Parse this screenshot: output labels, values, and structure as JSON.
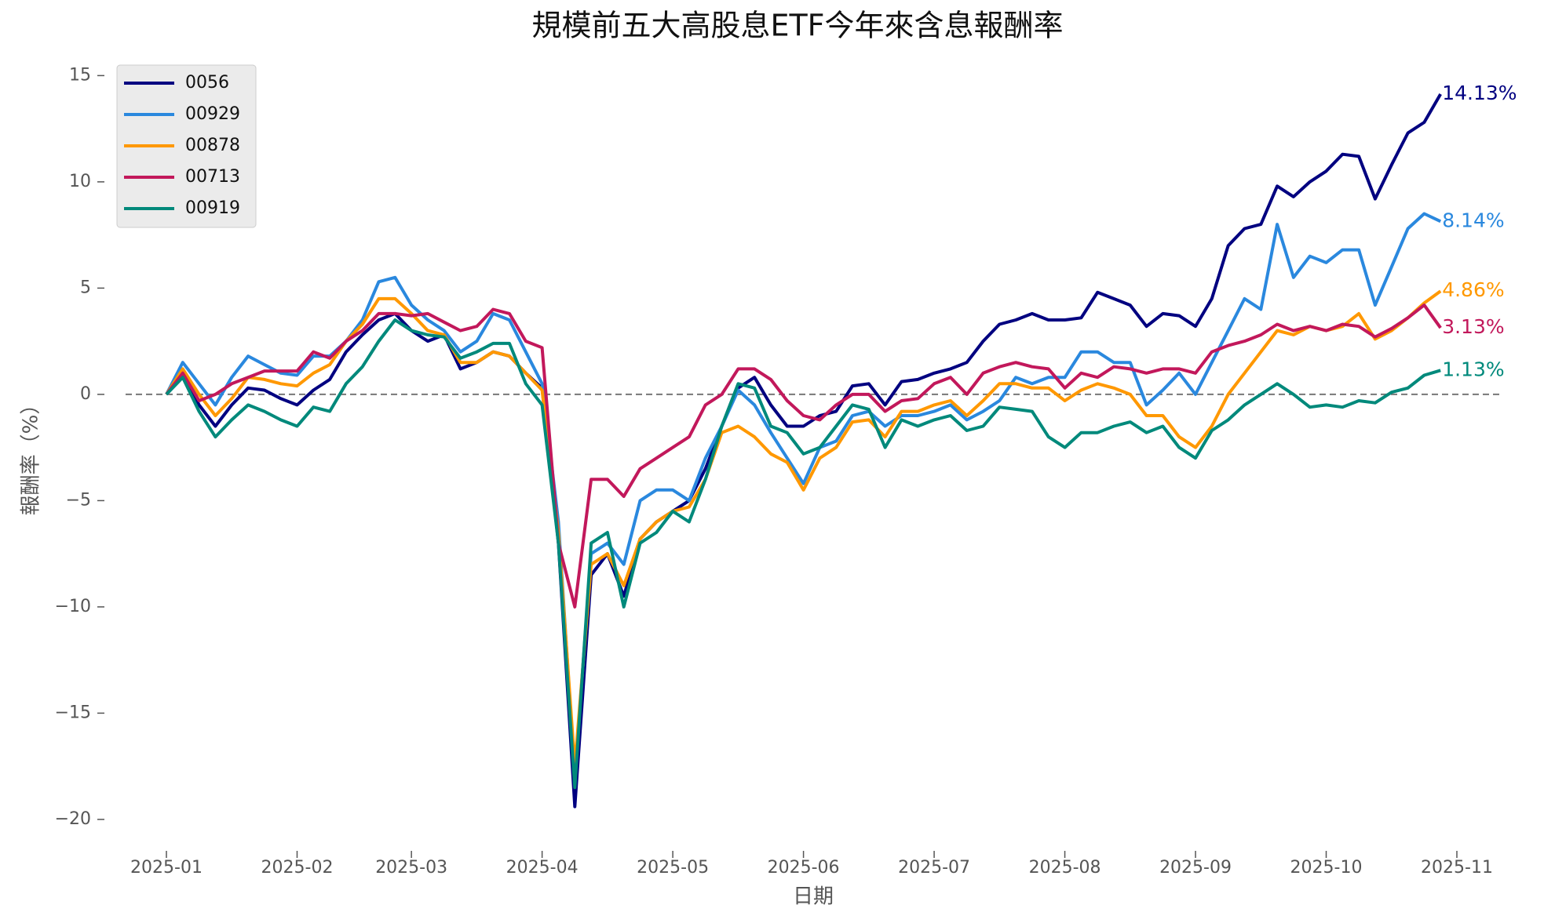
{
  "chart_data": {
    "type": "line",
    "title": "規模前五大高股息ETF今年來含息報酬率",
    "x_label": "日期",
    "y_label": "報酬率（%）",
    "categories": [
      "2025-01",
      null,
      null,
      null,
      null,
      null,
      null,
      null,
      "2025-02",
      null,
      null,
      null,
      null,
      null,
      null,
      "2025-03",
      null,
      null,
      null,
      null,
      null,
      null,
      null,
      "2025-04",
      null,
      null,
      null,
      null,
      null,
      null,
      null,
      "2025-05",
      null,
      null,
      null,
      null,
      null,
      null,
      null,
      "2025-06",
      null,
      null,
      null,
      null,
      null,
      null,
      null,
      "2025-07",
      null,
      null,
      null,
      null,
      null,
      null,
      null,
      "2025-08",
      null,
      null,
      null,
      null,
      null,
      null,
      null,
      "2025-09",
      null,
      null,
      null,
      null,
      null,
      null,
      null,
      "2025-10",
      null,
      null,
      null,
      null,
      null,
      null,
      null,
      "2025-11"
    ],
    "ylim": [
      -21.0,
      15.9
    ],
    "yticks": [
      {
        "value": -20,
        "label": "−20"
      },
      {
        "value": -15,
        "label": "−15"
      },
      {
        "value": -10,
        "label": "−10"
      },
      {
        "value": -5,
        "label": "−5"
      },
      0,
      5,
      10,
      15
    ],
    "hline": 0,
    "legend": "upper-left",
    "series": [
      {
        "name": "0056",
        "color": "#000080",
        "values": [
          0,
          1.0,
          -0.5,
          -1.5,
          -0.5,
          0.3,
          0.2,
          -0.2,
          -0.5,
          0.2,
          0.7,
          2.0,
          2.8,
          3.5,
          3.8,
          3.0,
          2.5,
          2.8,
          1.2,
          1.5,
          2.0,
          1.8,
          1.0,
          0.3,
          -7,
          -19.4,
          -8.5,
          -7.5,
          -9.5,
          -6.8,
          -6,
          -5.5,
          -5,
          -3.5,
          -1.5,
          0.3,
          0.8,
          -0.5,
          -1.5,
          -1.5,
          -1.0,
          -0.8,
          0.4,
          0.5,
          -0.5,
          0.6,
          0.7,
          1.0,
          1.2,
          1.5,
          2.5,
          3.3,
          3.5,
          3.8,
          3.5,
          3.5,
          3.6,
          4.8,
          4.5,
          4.2,
          3.2,
          3.8,
          3.7,
          3.2,
          4.5,
          7.0,
          7.8,
          8.0,
          9.8,
          9.3,
          10.0,
          10.5,
          11.3,
          11.2,
          9.2,
          10.8,
          12.3,
          12.8,
          14.13,
          null
        ],
        "value_labels": [
          null,
          null,
          null,
          null,
          null,
          null,
          null,
          null,
          null,
          null,
          null,
          null,
          null,
          null,
          null,
          null,
          null,
          null,
          null,
          null,
          null,
          null,
          null,
          null,
          null,
          null,
          null,
          null,
          null,
          null,
          null,
          null,
          null,
          null,
          null,
          null,
          null,
          null,
          null,
          null,
          null,
          null,
          null,
          null,
          null,
          null,
          null,
          null,
          null,
          null,
          null,
          null,
          null,
          null,
          null,
          null,
          null,
          null,
          null,
          null,
          null,
          null,
          null,
          null,
          null,
          null,
          null,
          null,
          null,
          null,
          null,
          null,
          null,
          null,
          null,
          null,
          null,
          null,
          "14.13%",
          null
        ]
      },
      {
        "name": "00929",
        "color": "#2a88de",
        "values": [
          0,
          1.5,
          0.5,
          -0.5,
          0.8,
          1.8,
          1.4,
          1.0,
          0.9,
          1.8,
          1.8,
          2.5,
          3.5,
          5.3,
          5.5,
          4.2,
          3.5,
          3.0,
          2.0,
          2.5,
          3.8,
          3.5,
          2.0,
          0.5,
          -6,
          -18,
          -7.5,
          -7,
          -8,
          -5,
          -4.5,
          -4.5,
          -5,
          -3,
          -1.5,
          0.2,
          -0.5,
          -1.8,
          -3,
          -4.2,
          -2.5,
          -2.2,
          -1.0,
          -0.8,
          -1.5,
          -1.0,
          -1.0,
          -0.8,
          -0.5,
          -1.2,
          -0.8,
          -0.3,
          0.8,
          0.5,
          0.8,
          0.8,
          2.0,
          2.0,
          1.5,
          1.5,
          -0.5,
          0.2,
          1.0,
          0.0,
          1.5,
          3.0,
          4.5,
          4.0,
          8.0,
          5.5,
          6.5,
          6.2,
          6.8,
          6.8,
          4.2,
          6.0,
          7.8,
          8.5,
          8.14,
          null
        ],
        "value_labels": [
          null,
          null,
          null,
          null,
          null,
          null,
          null,
          null,
          null,
          null,
          null,
          null,
          null,
          null,
          null,
          null,
          null,
          null,
          null,
          null,
          null,
          null,
          null,
          null,
          null,
          null,
          null,
          null,
          null,
          null,
          null,
          null,
          null,
          null,
          null,
          null,
          null,
          null,
          null,
          null,
          null,
          null,
          null,
          null,
          null,
          null,
          null,
          null,
          null,
          null,
          null,
          null,
          null,
          null,
          null,
          null,
          null,
          null,
          null,
          null,
          null,
          null,
          null,
          null,
          null,
          null,
          null,
          null,
          null,
          null,
          null,
          null,
          null,
          null,
          null,
          null,
          null,
          null,
          "8.14%",
          null
        ]
      },
      {
        "name": "00878",
        "color": "#ff9800",
        "values": [
          0,
          1.2,
          0,
          -1.0,
          -0.2,
          0.8,
          0.7,
          0.5,
          0.4,
          1.0,
          1.4,
          2.5,
          3.3,
          4.5,
          4.5,
          3.8,
          3.0,
          2.8,
          1.5,
          1.5,
          2.0,
          1.8,
          1.0,
          0.2,
          -6.5,
          -17.5,
          -8,
          -7.5,
          -9,
          -6.8,
          -6,
          -5.5,
          -5.3,
          -4,
          -1.8,
          -1.5,
          -2,
          -2.8,
          -3.2,
          -4.5,
          -3,
          -2.5,
          -1.3,
          -1.2,
          -2.0,
          -0.8,
          -0.8,
          -0.5,
          -0.3,
          -1.0,
          -0.3,
          0.5,
          0.5,
          0.3,
          0.3,
          -0.3,
          0.2,
          0.5,
          0.3,
          0.0,
          -1.0,
          -1.0,
          -2.0,
          -2.5,
          -1.5,
          0.0,
          1.0,
          2.0,
          3.0,
          2.8,
          3.2,
          3.0,
          3.2,
          3.8,
          2.6,
          3.0,
          3.6,
          4.3,
          4.86,
          null
        ],
        "value_labels": [
          null,
          null,
          null,
          null,
          null,
          null,
          null,
          null,
          null,
          null,
          null,
          null,
          null,
          null,
          null,
          null,
          null,
          null,
          null,
          null,
          null,
          null,
          null,
          null,
          null,
          null,
          null,
          null,
          null,
          null,
          null,
          null,
          null,
          null,
          null,
          null,
          null,
          null,
          null,
          null,
          null,
          null,
          null,
          null,
          null,
          null,
          null,
          null,
          null,
          null,
          null,
          null,
          null,
          null,
          null,
          null,
          null,
          null,
          null,
          null,
          null,
          null,
          null,
          null,
          null,
          null,
          null,
          null,
          null,
          null,
          null,
          null,
          null,
          null,
          null,
          null,
          null,
          null,
          "4.86%",
          null
        ]
      },
      {
        "name": "00713",
        "color": "#c2185b",
        "values": [
          0,
          1.0,
          -0.3,
          0.0,
          0.5,
          0.8,
          1.1,
          1.1,
          1.1,
          2.0,
          1.7,
          2.5,
          3.0,
          3.8,
          3.8,
          3.7,
          3.8,
          3.4,
          3.0,
          3.2,
          4.0,
          3.8,
          2.5,
          2.2,
          -7,
          -10,
          -4,
          -4,
          -4.8,
          -3.5,
          -3,
          -2.5,
          -2,
          -0.5,
          0,
          1.2,
          1.2,
          0.7,
          -0.3,
          -1,
          -1.2,
          -0.5,
          0,
          0,
          -0.8,
          -0.3,
          -0.2,
          0.5,
          0.8,
          0.0,
          1.0,
          1.3,
          1.5,
          1.3,
          1.2,
          0.3,
          1.0,
          0.8,
          1.3,
          1.2,
          1.0,
          1.2,
          1.2,
          1.0,
          2.0,
          2.3,
          2.5,
          2.8,
          3.3,
          3.0,
          3.2,
          3.0,
          3.3,
          3.2,
          2.7,
          3.1,
          3.6,
          4.2,
          3.13,
          null
        ],
        "value_labels": [
          null,
          null,
          null,
          null,
          null,
          null,
          null,
          null,
          null,
          null,
          null,
          null,
          null,
          null,
          null,
          null,
          null,
          null,
          null,
          null,
          null,
          null,
          null,
          null,
          null,
          null,
          null,
          null,
          null,
          null,
          null,
          null,
          null,
          null,
          null,
          null,
          null,
          null,
          null,
          null,
          null,
          null,
          null,
          null,
          null,
          null,
          null,
          null,
          null,
          null,
          null,
          null,
          null,
          null,
          null,
          null,
          null,
          null,
          null,
          null,
          null,
          null,
          null,
          null,
          null,
          null,
          null,
          null,
          null,
          null,
          null,
          null,
          null,
          null,
          null,
          null,
          null,
          null,
          "3.13%",
          null
        ]
      },
      {
        "name": "00919",
        "color": "#00897b",
        "values": [
          0,
          0.8,
          -0.8,
          -2.0,
          -1.2,
          -0.5,
          -0.8,
          -1.2,
          -1.5,
          -0.6,
          -0.8,
          0.5,
          1.3,
          2.5,
          3.5,
          3.0,
          2.8,
          2.7,
          1.7,
          2.0,
          2.4,
          2.4,
          0.5,
          -0.5,
          -7,
          -18.5,
          -7,
          -6.5,
          -10,
          -7,
          -6.5,
          -5.5,
          -6,
          -4,
          -1.5,
          0.5,
          0.3,
          -1.5,
          -1.8,
          -2.8,
          -2.5,
          -1.5,
          -0.5,
          -0.7,
          -2.5,
          -1.2,
          -1.5,
          -1.2,
          -1.0,
          -1.7,
          -1.5,
          -0.6,
          -0.7,
          -0.8,
          -2.0,
          -2.5,
          -1.8,
          -1.8,
          -1.5,
          -1.3,
          -1.8,
          -1.5,
          -2.5,
          -3.0,
          -1.7,
          -1.2,
          -0.5,
          0.0,
          0.5,
          0.0,
          -0.6,
          -0.5,
          -0.6,
          -0.3,
          -0.4,
          0.1,
          0.3,
          0.9,
          1.13,
          null
        ],
        "value_labels": [
          null,
          null,
          null,
          null,
          null,
          null,
          null,
          null,
          null,
          null,
          null,
          null,
          null,
          null,
          null,
          null,
          null,
          null,
          null,
          null,
          null,
          null,
          null,
          null,
          null,
          null,
          null,
          null,
          null,
          null,
          null,
          null,
          null,
          null,
          null,
          null,
          null,
          null,
          null,
          null,
          null,
          null,
          null,
          null,
          null,
          null,
          null,
          null,
          null,
          null,
          null,
          null,
          null,
          null,
          null,
          null,
          null,
          null,
          null,
          null,
          null,
          null,
          null,
          null,
          null,
          null,
          null,
          null,
          null,
          null,
          null,
          null,
          null,
          null,
          null,
          null,
          null,
          null,
          "1.13%",
          null
        ]
      }
    ]
  }
}
